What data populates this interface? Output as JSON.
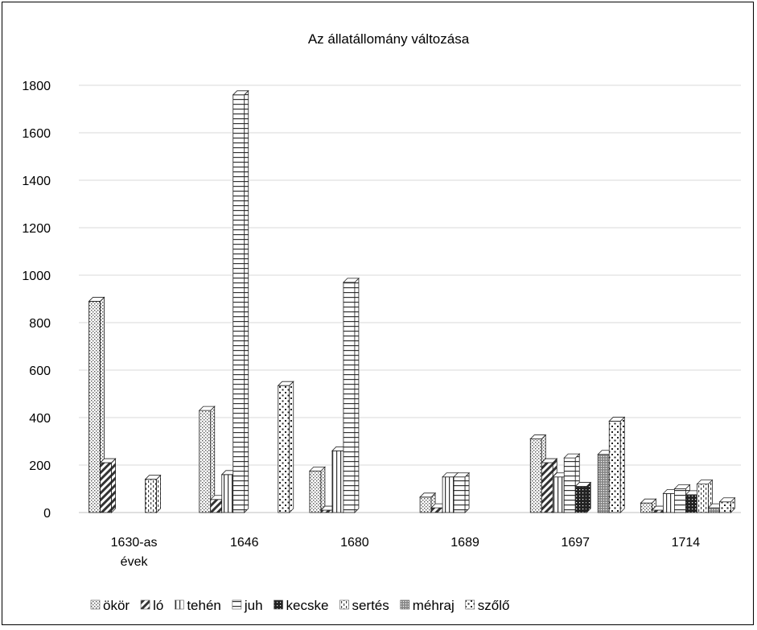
{
  "chart_data": {
    "type": "bar",
    "title": "Az állatállomány változása",
    "xlabel": "",
    "ylabel": "",
    "ylim": [
      0,
      1800
    ],
    "yticks": [
      0,
      200,
      400,
      600,
      800,
      1000,
      1200,
      1400,
      1600,
      1800
    ],
    "grid": true,
    "legend_position": "bottom",
    "categories": [
      [
        "1630-as",
        "évek"
      ],
      [
        "1646"
      ],
      [
        "1680"
      ],
      [
        "1689"
      ],
      [
        "1697"
      ],
      [
        "1714"
      ]
    ],
    "series": [
      {
        "name": "ökör",
        "pattern": "dots",
        "values": [
          890,
          430,
          175,
          65,
          310,
          40
        ]
      },
      {
        "name": "ló",
        "pattern": "diagonal",
        "values": [
          210,
          55,
          10,
          20,
          210,
          10
        ]
      },
      {
        "name": "tehén",
        "pattern": "vertical",
        "values": [
          0,
          160,
          260,
          150,
          150,
          80
        ]
      },
      {
        "name": "juh",
        "pattern": "horizontal",
        "values": [
          0,
          1760,
          970,
          150,
          230,
          100
        ]
      },
      {
        "name": "kecske",
        "pattern": "dark",
        "values": [
          0,
          0,
          0,
          0,
          110,
          75
        ]
      },
      {
        "name": "sertés",
        "pattern": "dashed",
        "values": [
          140,
          0,
          0,
          0,
          0,
          120
        ]
      },
      {
        "name": "méhraj",
        "pattern": "grey",
        "values": [
          0,
          0,
          0,
          0,
          245,
          20
        ]
      },
      {
        "name": "szőlő",
        "pattern": "sparse",
        "values": [
          0,
          535,
          0,
          0,
          385,
          45
        ]
      }
    ]
  }
}
